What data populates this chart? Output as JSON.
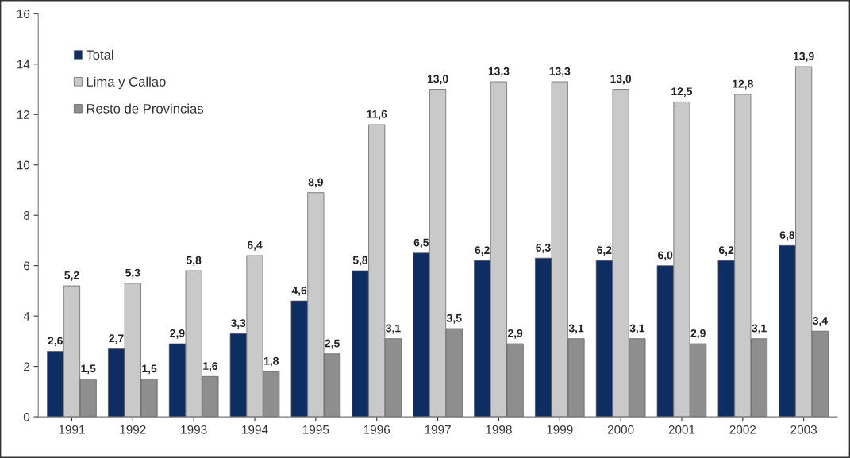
{
  "chart_data": {
    "type": "bar",
    "categories": [
      "1991",
      "1992",
      "1993",
      "1994",
      "1995",
      "1996",
      "1997",
      "1998",
      "1999",
      "2000",
      "2001",
      "2002",
      "2003"
    ],
    "series": [
      {
        "name": "Total",
        "color": "#0e2d63",
        "values": [
          2.6,
          2.7,
          2.9,
          3.3,
          4.6,
          5.8,
          6.5,
          6.2,
          6.3,
          6.2,
          6.0,
          6.2,
          6.8
        ],
        "value_labels": [
          "2,6",
          "2,7",
          "2,9",
          "3,3",
          "4,6",
          "5,8",
          "6,5",
          "6,2",
          "6,3",
          "6,2",
          "6,0",
          "6,2",
          "6,8"
        ]
      },
      {
        "name": "Lima y Callao",
        "color": "#c9c9c9",
        "values": [
          5.2,
          5.3,
          5.8,
          6.4,
          8.9,
          11.6,
          13.0,
          13.3,
          13.3,
          13.0,
          12.5,
          12.8,
          13.9
        ],
        "value_labels": [
          "5,2",
          "5,3",
          "5,8",
          "6,4",
          "8,9",
          "11,6",
          "13,0",
          "13,3",
          "13,3",
          "13,0",
          "12,5",
          "12,8",
          "13,9"
        ]
      },
      {
        "name": "Resto de Provincias",
        "color": "#8e8e8e",
        "values": [
          1.5,
          1.5,
          1.6,
          1.8,
          2.5,
          3.1,
          3.5,
          2.9,
          3.1,
          3.1,
          2.9,
          3.1,
          3.4
        ],
        "value_labels": [
          "1,5",
          "1,5",
          "1,6",
          "1,8",
          "2,5",
          "3,1",
          "3,5",
          "2,9",
          "3,1",
          "3,1",
          "2,9",
          "3,1",
          "3,4"
        ]
      }
    ],
    "ylim": [
      0,
      16
    ],
    "yticks": [
      0,
      2,
      4,
      6,
      8,
      10,
      12,
      14,
      16
    ],
    "grid": false,
    "legend": "top left"
  }
}
